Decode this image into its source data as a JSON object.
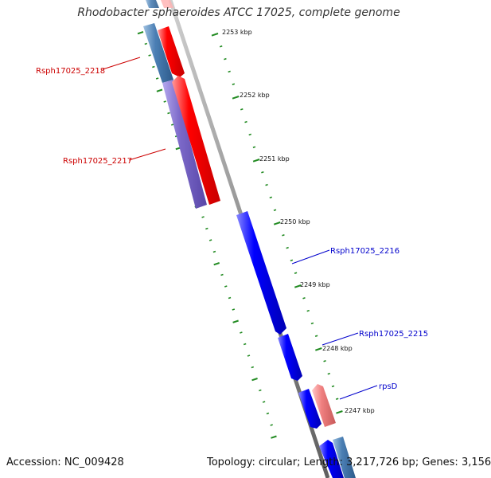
{
  "title": "Rhodobacter sphaeroides ATCC 17025, complete genome",
  "footer": {
    "accession_label": "Accession:",
    "accession": "NC_009428",
    "topology_label": "Topology:",
    "topology": "circular",
    "length_label": "Length:",
    "length": "3,217,726 bp",
    "genes_label": "Genes:",
    "genes": "3,156"
  },
  "scale_labels": [
    {
      "text": "2253 kbp"
    },
    {
      "text": "2252 kbp"
    },
    {
      "text": "2251 kbp"
    },
    {
      "text": "2250 kbp"
    },
    {
      "text": "2249 kbp"
    },
    {
      "text": "2248 kbp"
    },
    {
      "text": "2247 kbp"
    }
  ],
  "gene_labels": [
    {
      "text": "Rsph17025_2218",
      "color": "#cc0000"
    },
    {
      "text": "Rsph17025_2217",
      "color": "#cc0000"
    },
    {
      "text": "Rsph17025_2216",
      "color": "#0000cc"
    },
    {
      "text": "Rsph17025_2215",
      "color": "#0000cc"
    },
    {
      "text": "rpsD",
      "color": "#0000cc"
    }
  ],
  "colors": {
    "forward_gene": "#ff0000",
    "reverse_gene": "#0000ff",
    "other_gene": "#4b7fb4",
    "rna_gene": "#7b68c8",
    "pseudo_gene": "#f08080",
    "backbone": "#808080",
    "tick": "#228b22"
  }
}
